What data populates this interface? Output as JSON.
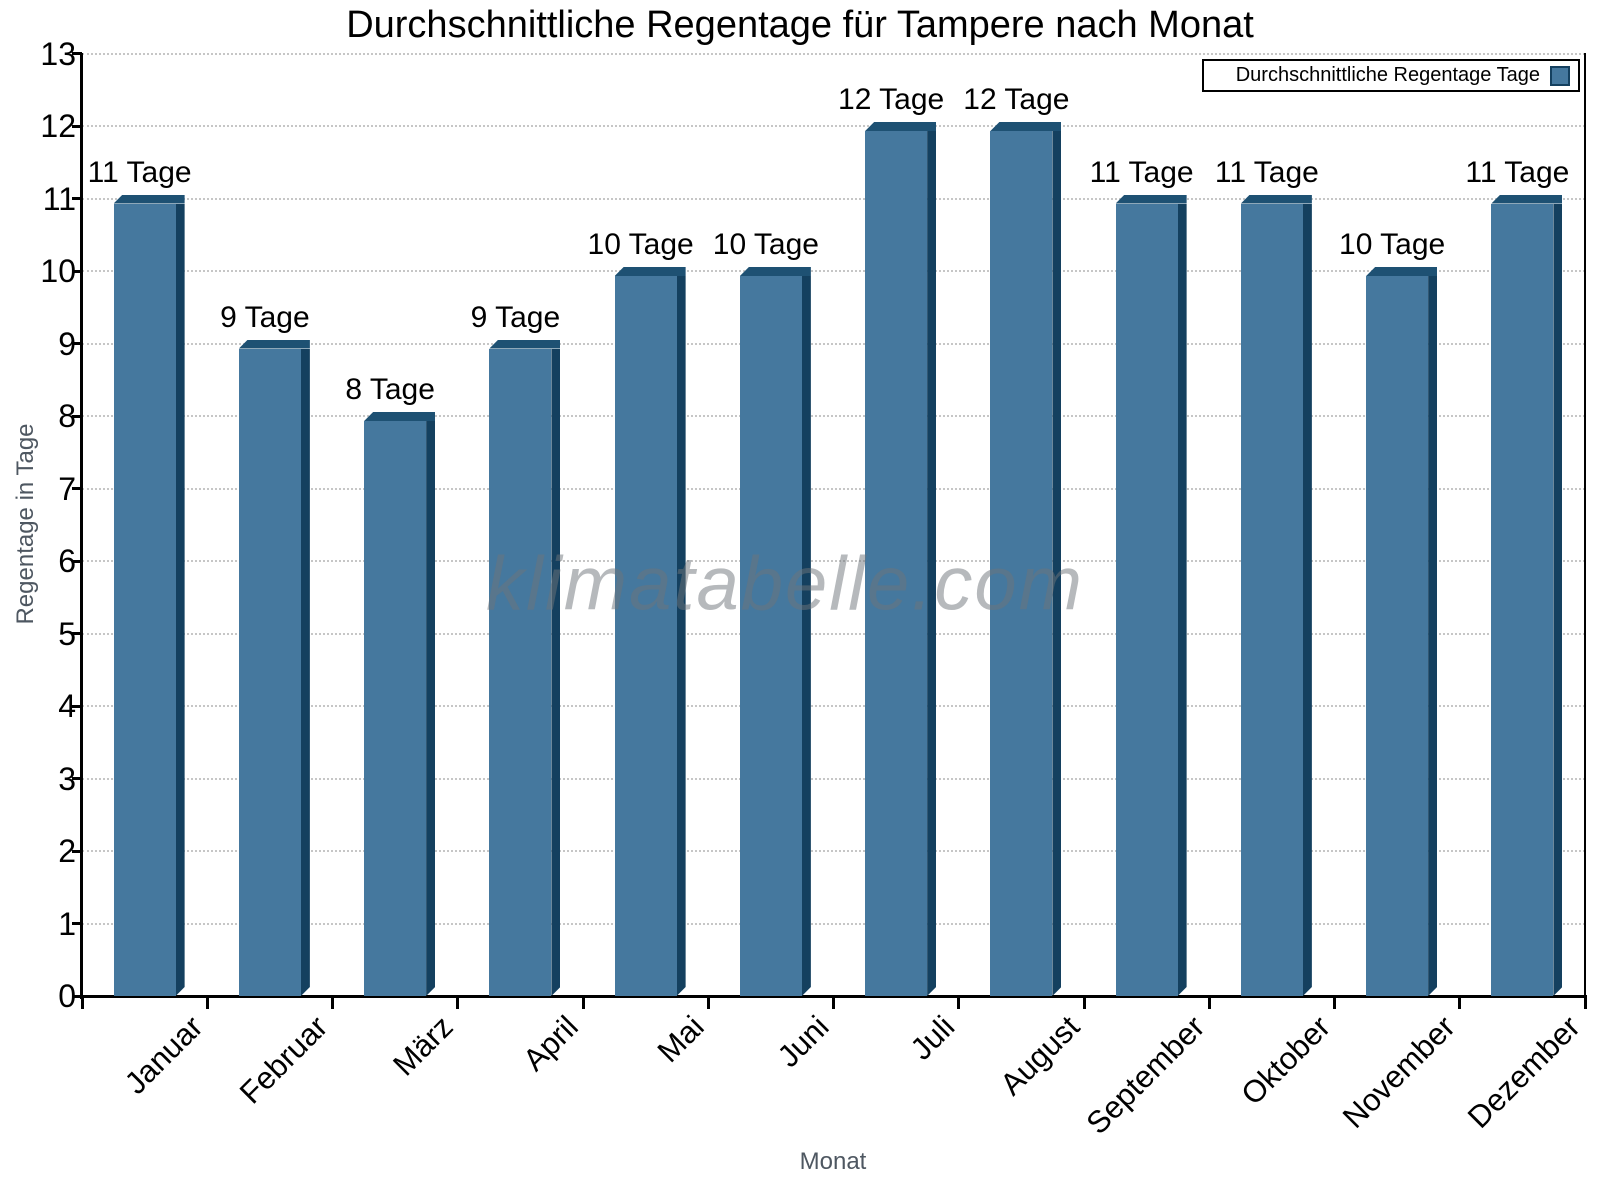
{
  "watermark": "klimatabelle.com",
  "legend": {
    "label": "Durchschnittliche Regentage Tage"
  },
  "chart_data": {
    "type": "bar",
    "title": "Durchschnittliche Regentage für Tampere nach Monat",
    "xlabel": "Monat",
    "ylabel": "Regentage in Tage",
    "categories": [
      "Januar",
      "Februar",
      "März",
      "April",
      "Mai",
      "Juni",
      "Juli",
      "August",
      "September",
      "Oktober",
      "November",
      "Dezember"
    ],
    "values": [
      11,
      9,
      8,
      9,
      10,
      10,
      12,
      12,
      11,
      11,
      10,
      11
    ],
    "value_labels": [
      "11 Tage",
      "9 Tage",
      "8 Tage",
      "9 Tage",
      "10 Tage",
      "10 Tage",
      "12 Tage",
      "12 Tage",
      "11 Tage",
      "11 Tage",
      "10 Tage",
      "11 Tage"
    ],
    "series": [
      {
        "name": "Durchschnittliche Regentage Tage",
        "values": [
          11,
          9,
          8,
          9,
          10,
          10,
          12,
          12,
          11,
          11,
          10,
          11
        ]
      }
    ],
    "ylim": [
      0,
      13
    ],
    "ytick_step": 1,
    "grid": "horizontal-dotted",
    "legend_position": "top-right",
    "colors": {
      "bar_face": "#45789E",
      "bar_side": "#14405F",
      "bar_top": "#1E5173",
      "grid": "#c6c6c6",
      "axis": "#000000",
      "axis_title_text": "#4e5761",
      "tick_label_text": "#000000",
      "watermark_text": "#8a9098"
    }
  }
}
